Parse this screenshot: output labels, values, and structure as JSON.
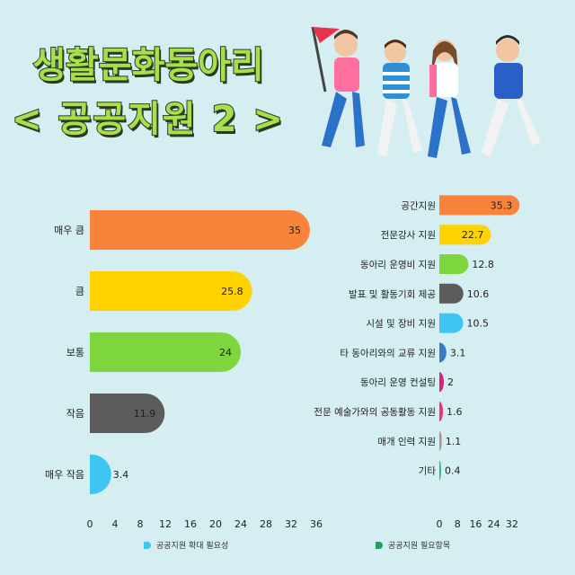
{
  "title": {
    "line1": "생활문화동아리",
    "line2": "< 공공지원 2 >"
  },
  "chart_data": [
    {
      "type": "bar",
      "orientation": "horizontal",
      "categories": [
        "매우 큼",
        "큼",
        "보통",
        "작음",
        "매우 작음"
      ],
      "values": [
        35,
        25.8,
        24,
        11.9,
        3.4
      ],
      "colors": [
        "#f9833a",
        "#ffd200",
        "#7dd63d",
        "#5c5c5c",
        "#3ec5f2"
      ],
      "xlim": [
        0,
        36
      ],
      "xticks": [
        0,
        4,
        8,
        12,
        16,
        20,
        24,
        28,
        32,
        36
      ],
      "legend": "공공지원 확대 필요성",
      "legend_color": "#3ec5f2"
    },
    {
      "type": "bar",
      "orientation": "horizontal",
      "categories": [
        "공간지원",
        "전문강사 지원",
        "동아리 운영비 지원",
        "발표 및 활동기회 제공",
        "시설 및 장비 지원",
        "타 동아리와의 교류 지원",
        "동아리 운영 컨설팅",
        "전문 예술가와의 공동활동 지원",
        "매개 인력 지원",
        "기타"
      ],
      "values": [
        35.3,
        22.7,
        12.8,
        10.6,
        10.5,
        3.1,
        2,
        1.6,
        1.1,
        0.4
      ],
      "colors": [
        "#f9833a",
        "#ffd200",
        "#7dd63d",
        "#5c5c5c",
        "#3ec5f2",
        "#3a7cc4",
        "#e0207a",
        "#f0307a",
        "#a89a86",
        "#2ab58c"
      ],
      "xlim": [
        0,
        36
      ],
      "xticks": [
        0,
        8,
        16,
        24,
        32
      ],
      "legend": "공공지원 필요항목",
      "legend_color": "#1aa35a"
    }
  ]
}
